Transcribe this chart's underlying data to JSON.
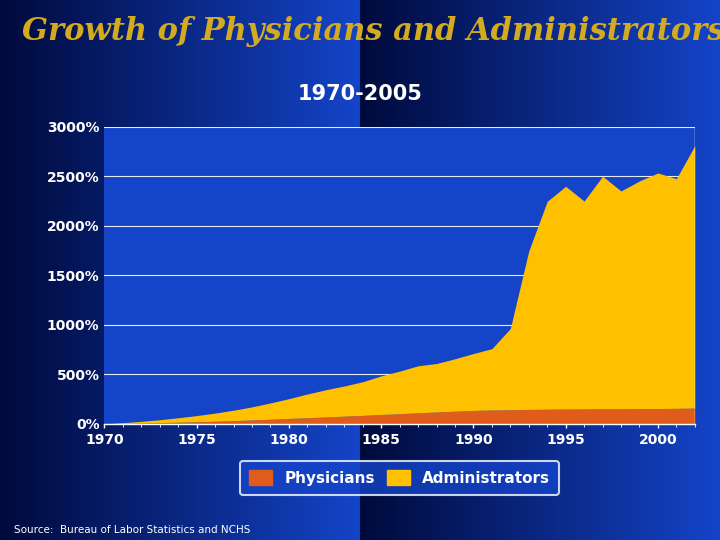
{
  "title": "Growth of Physicians and Administrators",
  "subtitle": "1970-2005",
  "source": "Source:  Bureau of Labor Statistics and NCHS",
  "bg_top_color": "#000a3c",
  "bg_bottom_color": "#1444c8",
  "plot_bg_color": "#1444c8",
  "title_color": "#d4aa20",
  "subtitle_color": "#ffffff",
  "axis_text_color": "#ffffff",
  "grid_color": "#ffffff",
  "physicians_color": "#e05c1a",
  "administrators_color": "#ffc000",
  "legend_bg_color": "#1444c8",
  "years": [
    1970,
    1971,
    1972,
    1973,
    1974,
    1975,
    1976,
    1977,
    1978,
    1979,
    1980,
    1981,
    1982,
    1983,
    1984,
    1985,
    1986,
    1987,
    1988,
    1989,
    1990,
    1991,
    1992,
    1993,
    1994,
    1995,
    1996,
    1997,
    1998,
    1999,
    2000,
    2001,
    2002
  ],
  "physicians_pct": [
    0,
    4,
    8,
    12,
    17,
    22,
    27,
    33,
    40,
    47,
    55,
    62,
    70,
    78,
    86,
    95,
    103,
    112,
    120,
    128,
    136,
    140,
    143,
    146,
    148,
    150,
    151,
    152,
    153,
    154,
    155,
    157,
    160
  ],
  "administrators_pct": [
    0,
    8,
    18,
    30,
    45,
    62,
    82,
    105,
    132,
    165,
    200,
    240,
    275,
    305,
    340,
    390,
    430,
    475,
    490,
    530,
    575,
    620,
    820,
    1600,
    2100,
    2250,
    2100,
    2350,
    2200,
    2300,
    2380,
    2320,
    2650
  ],
  "yticks": [
    0,
    500,
    1000,
    1500,
    2000,
    2500,
    3000
  ],
  "ytick_labels": [
    "0%",
    "500%",
    "1000%",
    "1500%",
    "2000%",
    "2500%",
    "3000%"
  ],
  "xticks": [
    1970,
    1975,
    1980,
    1985,
    1990,
    1995,
    2000
  ],
  "ylim": [
    0,
    3000
  ],
  "xlim": [
    1970,
    2002
  ]
}
